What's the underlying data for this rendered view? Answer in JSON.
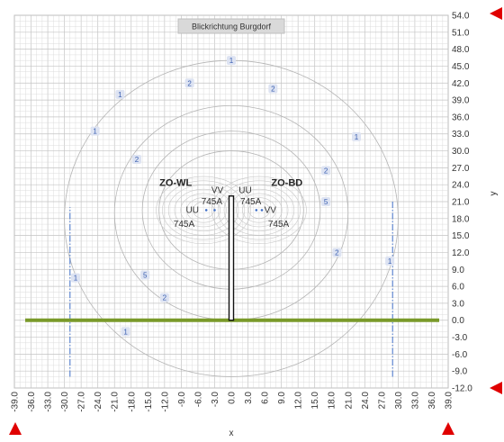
{
  "chart_data": {
    "type": "contour",
    "title": "Blickrichtung Burgdorf",
    "xlabel": "x",
    "ylabel": "y",
    "xlim": [
      -39,
      39
    ],
    "ylim": [
      -12,
      54
    ],
    "grid": true,
    "x_ticks": [
      "-39.0",
      "-36.0",
      "-33.0",
      "-30.0",
      "-27.0",
      "-24.0",
      "-21.0",
      "-18.0",
      "-15.0",
      "-12.0",
      "-9.0",
      "-6.0",
      "-3.0",
      "0.0",
      "3.0",
      "6.0",
      "9.0",
      "12.0",
      "15.0",
      "18.0",
      "21.0",
      "24.0",
      "27.0",
      "30.0",
      "33.0",
      "36.0",
      "39.0"
    ],
    "y_ticks": [
      "54.0",
      "51.0",
      "48.0",
      "45.0",
      "42.0",
      "39.0",
      "36.0",
      "33.0",
      "30.0",
      "27.0",
      "24.0",
      "21.0",
      "18.0",
      "15.0",
      "12.0",
      "9.0",
      "6.0",
      "3.0",
      "0.0",
      "-3.0",
      "-6.0",
      "-9.0",
      "-12.0"
    ],
    "ground_line": {
      "x": [
        -39,
        39
      ],
      "y": 0,
      "color": "#7a9a2a"
    },
    "mast": {
      "x": 0,
      "y": [
        0,
        22
      ]
    },
    "section_lines": [
      {
        "x": -29,
        "y": [
          -10,
          20
        ]
      },
      {
        "x": 29,
        "y": [
          -10,
          21
        ]
      }
    ],
    "line_groups": [
      {
        "name": "ZO-WL",
        "x": -5,
        "y": 19.5
      },
      {
        "name": "ZO-BD",
        "x": 5,
        "y": 19.5
      }
    ],
    "conductor_labels": [
      {
        "text": "VV",
        "x": -2.5,
        "y": 23
      },
      {
        "text": "745A",
        "x": -3.5,
        "y": 21
      },
      {
        "text": "UU",
        "x": -7,
        "y": 19.5
      },
      {
        "text": "745A",
        "x": -8.5,
        "y": 17
      },
      {
        "text": "UU",
        "x": 2.5,
        "y": 23
      },
      {
        "text": "745A",
        "x": 3.5,
        "y": 21
      },
      {
        "text": "VV",
        "x": 7,
        "y": 19.5
      },
      {
        "text": "745A",
        "x": 8.5,
        "y": 17
      }
    ],
    "contour_labels": [
      {
        "text": "1",
        "x": 0,
        "y": 46
      },
      {
        "text": "2",
        "x": -7.5,
        "y": 42
      },
      {
        "text": "2",
        "x": 7.5,
        "y": 41
      },
      {
        "text": "1",
        "x": -20,
        "y": 40
      },
      {
        "text": "1",
        "x": -24.5,
        "y": 33.5
      },
      {
        "text": "1",
        "x": 22.5,
        "y": 32.5
      },
      {
        "text": "2",
        "x": -17,
        "y": 28.5
      },
      {
        "text": "2",
        "x": 17,
        "y": 26.5
      },
      {
        "text": "5",
        "x": 17,
        "y": 21
      },
      {
        "text": "2",
        "x": 19,
        "y": 12
      },
      {
        "text": "1",
        "x": -28,
        "y": 7.5
      },
      {
        "text": "1",
        "x": 28.5,
        "y": 10.5
      },
      {
        "text": "5",
        "x": -15.5,
        "y": 8
      },
      {
        "text": "2",
        "x": -12,
        "y": 4
      },
      {
        "text": "1",
        "x": -19,
        "y": -2
      }
    ]
  }
}
